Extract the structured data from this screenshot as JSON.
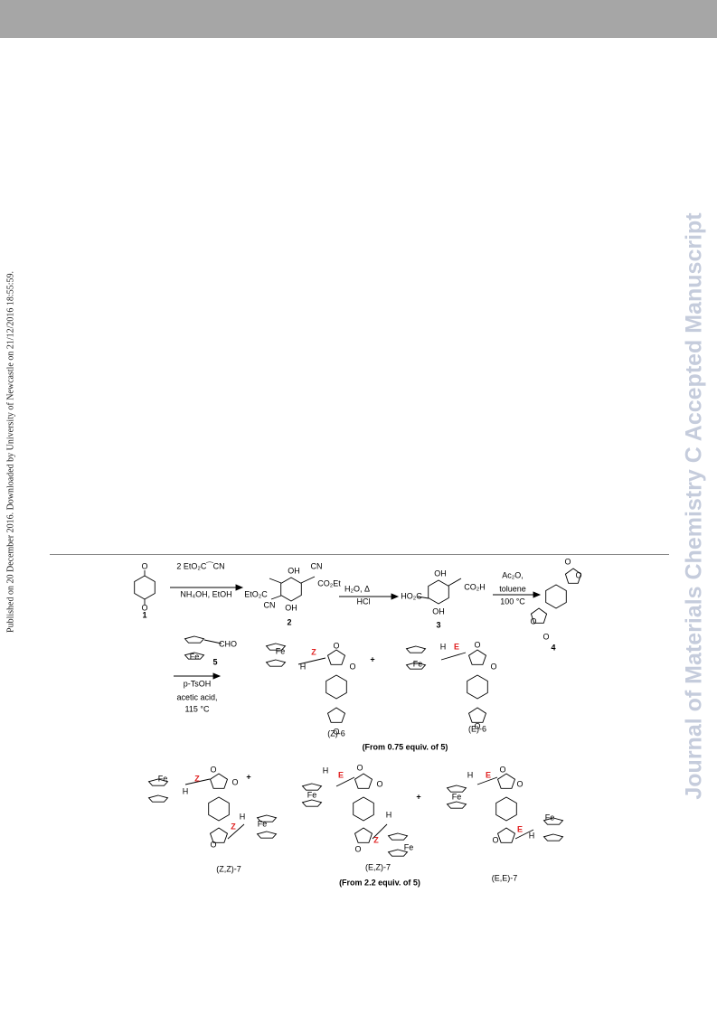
{
  "header": {
    "side_note": "Published on 20 December 2016. Downloaded by University of Newcastle on 21/12/2016 18:55:59.",
    "watermark": "Journal of Materials Chemistry C Accepted Manuscript"
  },
  "scheme": {
    "compounds": [
      "1",
      "2",
      "3",
      "4",
      "5"
    ],
    "reagents": [
      "2 EtO₂C⁀CN",
      "NH₄OH, EtOH",
      "H₂O, Δ",
      "HCl",
      "Ac₂O,",
      "toluene",
      "100 °C",
      "p-TsOH",
      "acetic acid,",
      "115 °C"
    ],
    "products": [
      "(Z)-6",
      "(E)-6",
      "(Z,Z)-7",
      "(E,Z)-7",
      "(E,E)-7"
    ],
    "notes": [
      "(From 0.75 equiv. of 5)",
      "(From 2.2 equiv. of 5)"
    ],
    "plus": [
      "+",
      "+",
      "+"
    ],
    "atoms": [
      "O",
      "O",
      "OH",
      "CN",
      "CO₂Et",
      "EtO₂C",
      "CN",
      "OH",
      "OH",
      "CO₂H",
      "HO₂C",
      "OH",
      "O",
      "O",
      "O",
      "O",
      "Fe",
      "CHO",
      "Fe",
      "H",
      "O",
      "O",
      "O",
      "Fe",
      "H",
      "O",
      "O",
      "O",
      "Fe",
      "H",
      "O",
      "O",
      "O",
      "H",
      "Fe",
      "Fe",
      "H",
      "O",
      "O",
      "O",
      "H",
      "Fe",
      "Fe",
      "H",
      "O",
      "O",
      "O",
      "H",
      "Fe"
    ],
    "isomer_marks": [
      "Z",
      "E",
      "Z",
      "Z",
      "E",
      "Z",
      "E",
      "E"
    ]
  }
}
